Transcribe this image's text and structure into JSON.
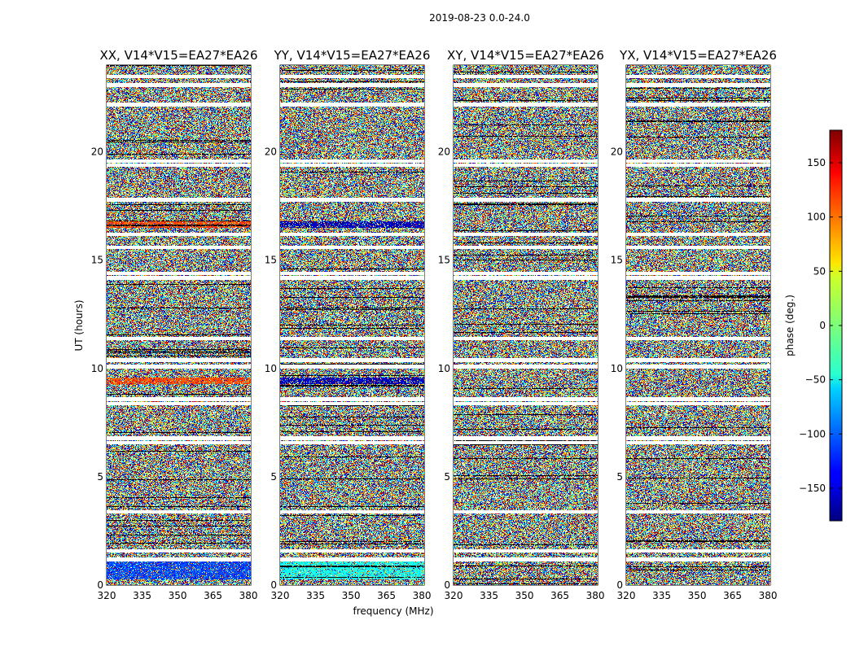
{
  "figure_title": "2019-08-23 0.0-24.0",
  "chart_data": {
    "type": "heatmap",
    "suptitle": "2019-08-23 0.0-24.0",
    "xlabel": "frequency (MHz)",
    "ylabel": "UT (hours)",
    "xlim": [
      320,
      381
    ],
    "ylim": [
      0,
      24
    ],
    "xticks": [
      320,
      335,
      350,
      365,
      380
    ],
    "yticks": [
      0,
      5,
      10,
      15,
      20
    ],
    "panels": [
      {
        "title": "XX, V14*V15=EA27*EA26",
        "polarization": "XX"
      },
      {
        "title": "YY, V14*V15=EA27*EA26",
        "polarization": "YY"
      },
      {
        "title": "XY, V14*V15=EA27*EA26",
        "polarization": "XY"
      },
      {
        "title": "YX, V14*V15=EA27*EA26",
        "polarization": "YX"
      }
    ],
    "colorbar": {
      "label": "phase (deg.)",
      "range": [
        -180,
        180
      ],
      "ticks": [
        -150,
        -100,
        -50,
        0,
        50,
        100,
        150
      ],
      "colormap": "jet"
    },
    "flagged_ut_hours": [
      1.2,
      1.6,
      3.4,
      6.6,
      6.8,
      8.4,
      8.6,
      10.1,
      10.4,
      11.4,
      14.2,
      14.4,
      15.6,
      16.2,
      17.8,
      19.4,
      19.6,
      22.2,
      23.1,
      23.5
    ],
    "coherent_band_ut_hours": [
      {
        "ut_start": 16.5,
        "ut_end": 16.8,
        "phase_xx": 110,
        "phase_yy": -160
      },
      {
        "ut_start": 9.3,
        "ut_end": 9.6,
        "phase_xx": 110,
        "phase_yy": -160
      },
      {
        "ut_start": 0.3,
        "ut_end": 1.3,
        "phase_xx": -110,
        "phase_yy": -40
      }
    ]
  }
}
